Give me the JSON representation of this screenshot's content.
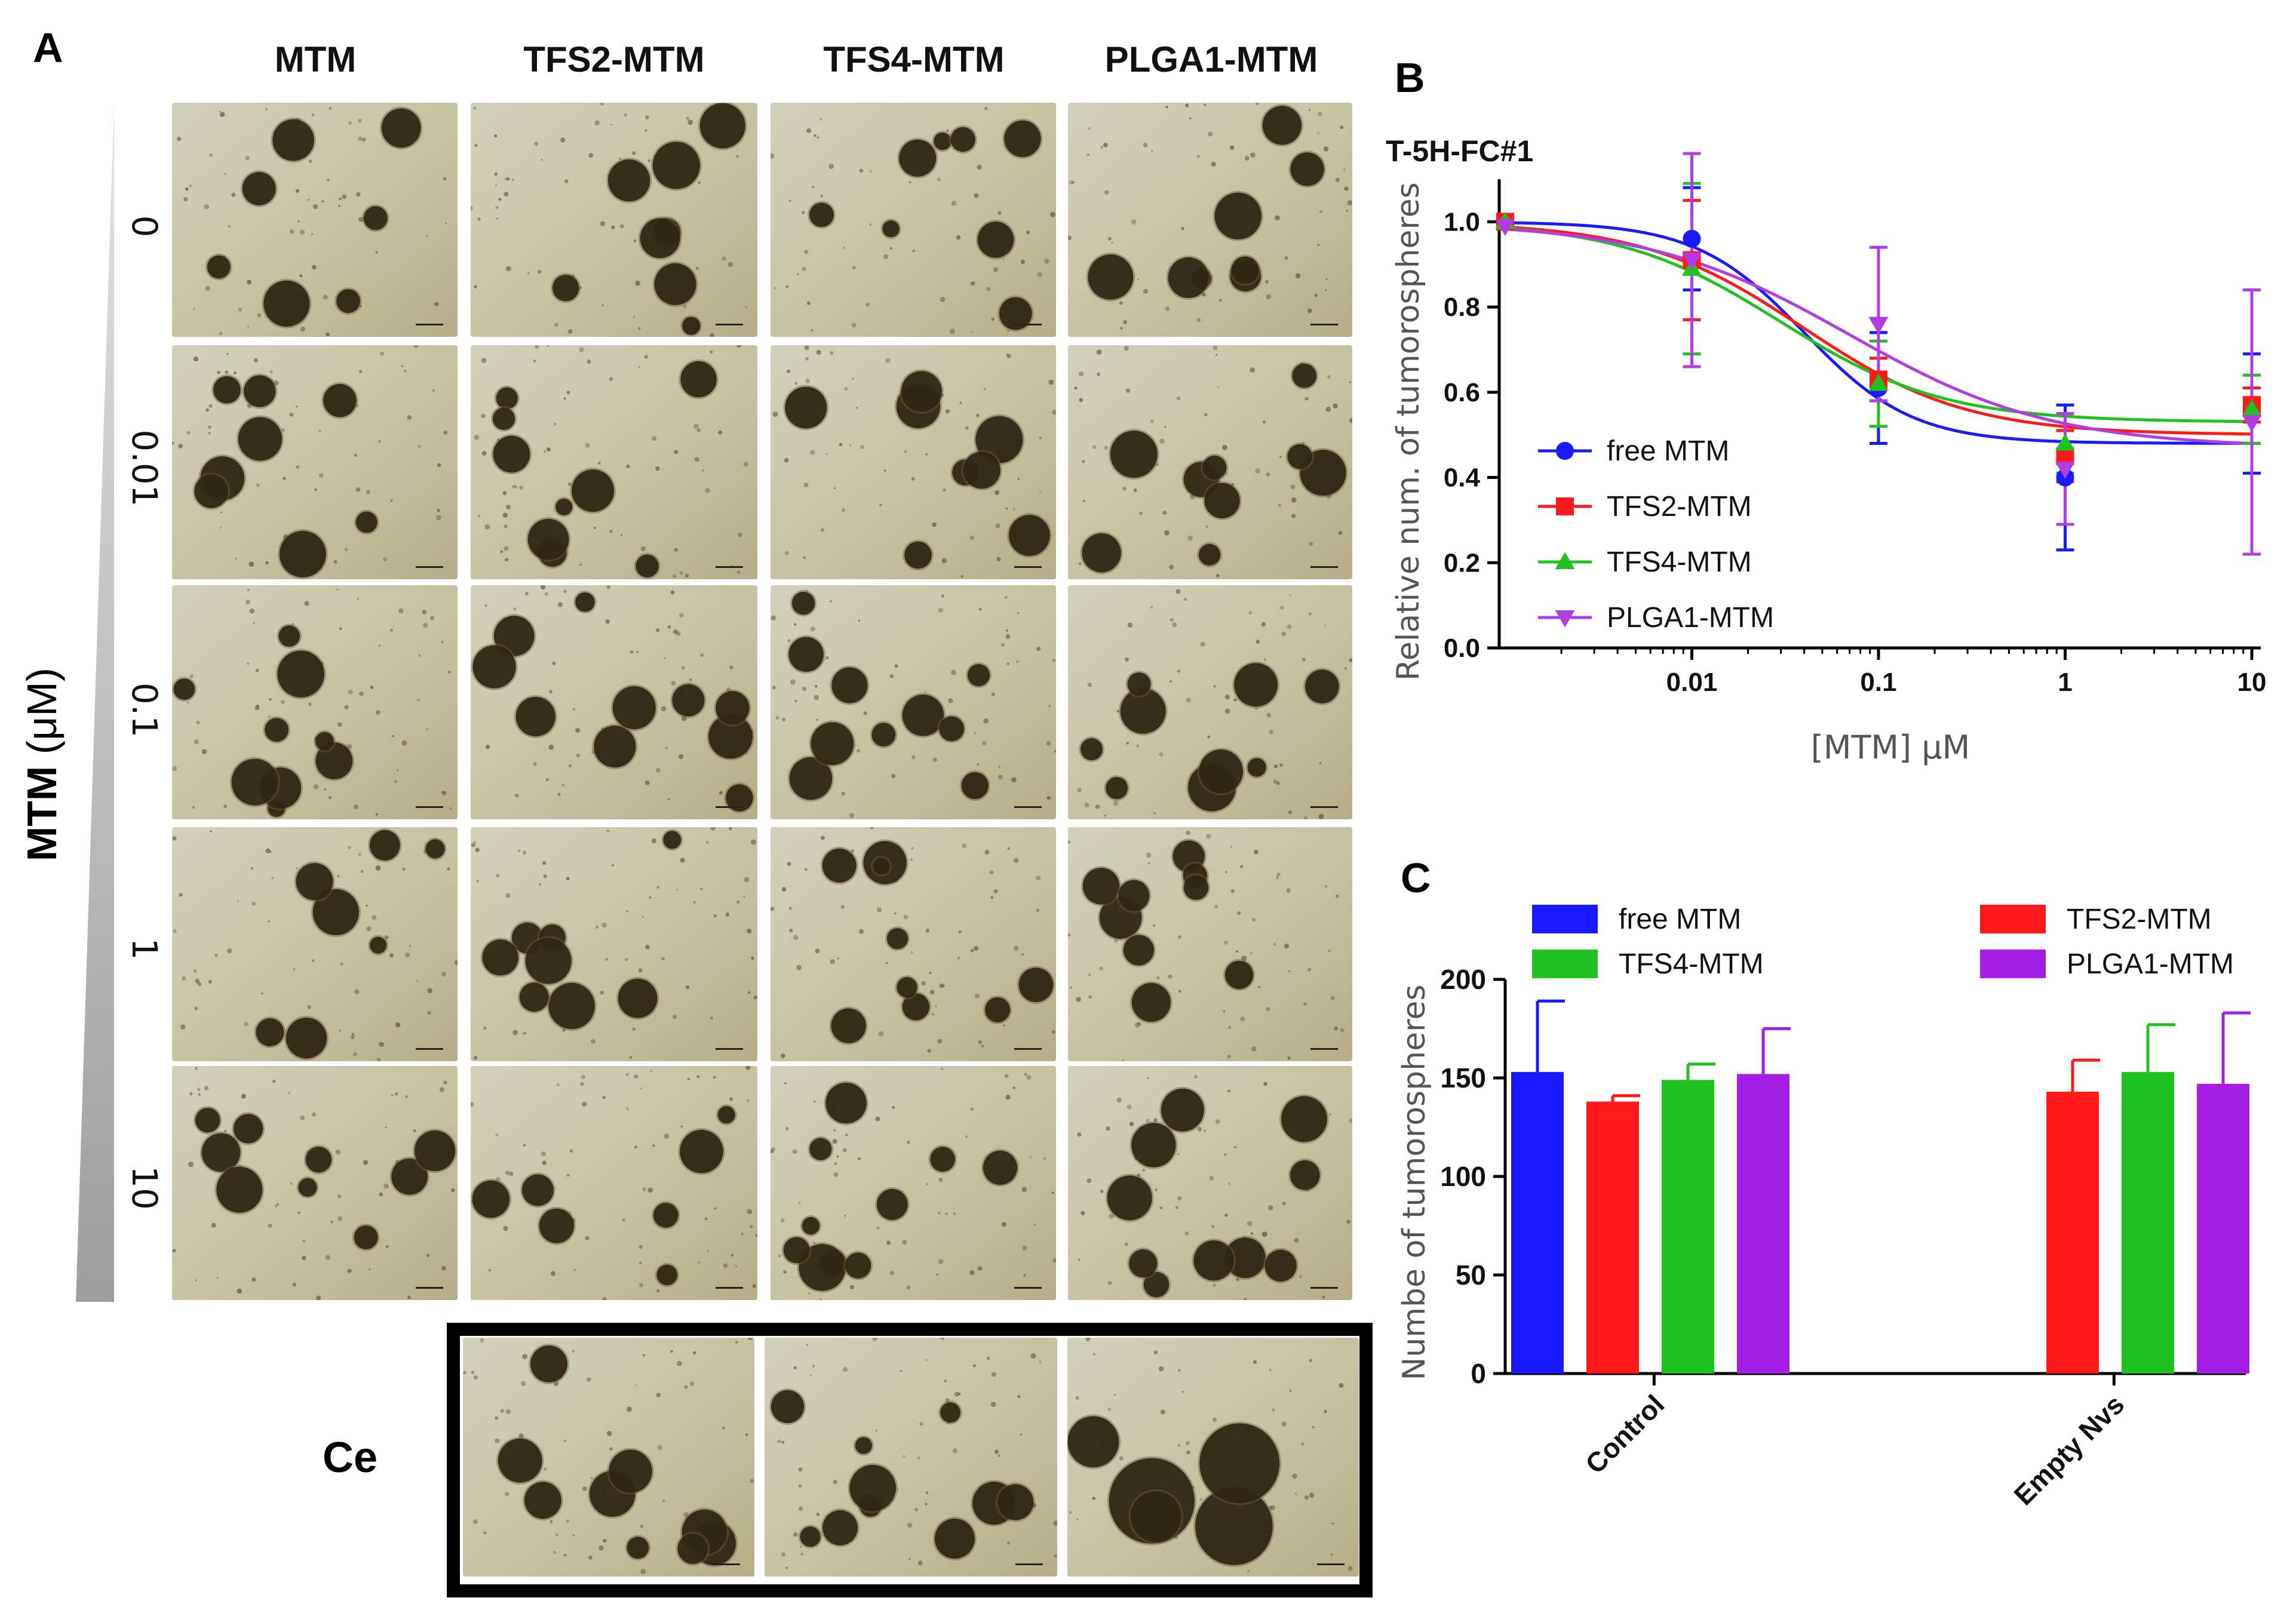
{
  "panel_a": {
    "letter": "A",
    "column_headers": [
      "MTM",
      "TFS2-MTM",
      "TFS4-MTM",
      "PLGA1-MTM"
    ],
    "row_labels": [
      "0",
      "0.01",
      "0.1",
      "1",
      "10"
    ],
    "y_axis_title": "MTM",
    "y_axis_unit": "(μM)",
    "ce_label": "Ce"
  },
  "chart_data": [
    {
      "panel": "B",
      "type": "scatter",
      "title": "T-5H-FC#1",
      "xlabel": "[MTM] μM",
      "ylabel": "Relative num. of tumorospheres",
      "x_scale": "log",
      "x_ticks": [
        "0.01",
        "0.1",
        "1",
        "10"
      ],
      "x_tick_values": [
        0.01,
        0.1,
        1,
        10
      ],
      "ylim": [
        0,
        1.1
      ],
      "y_ticks": [
        "0.0",
        "0.2",
        "0.4",
        "0.6",
        "0.8",
        "1.0"
      ],
      "legend_position": "left",
      "x": [
        0.001,
        0.01,
        0.1,
        1,
        10
      ],
      "series": [
        {
          "name": "free MTM",
          "color": "#1a1aff",
          "marker": "circle",
          "values": [
            1.0,
            0.96,
            0.61,
            0.4,
            0.55
          ],
          "err": [
            0.0,
            0.12,
            0.13,
            0.17,
            0.14
          ],
          "fit": {
            "bottom": 0.48,
            "top": 1.0,
            "ec50": 0.04,
            "hill": 1.5
          }
        },
        {
          "name": "TFS2-MTM",
          "color": "#ff1a1a",
          "marker": "square",
          "values": [
            1.0,
            0.91,
            0.63,
            0.45,
            0.57
          ],
          "err": [
            0.0,
            0.14,
            0.05,
            0.06,
            0.04
          ],
          "fit": {
            "bottom": 0.5,
            "top": 1.0,
            "ec50": 0.04,
            "hill": 1.0
          }
        },
        {
          "name": "TFS4-MTM",
          "color": "#1fc21f",
          "marker": "triangle-up",
          "values": [
            1.0,
            0.89,
            0.62,
            0.48,
            0.56
          ],
          "err": [
            0.0,
            0.2,
            0.1,
            0.07,
            0.08
          ],
          "fit": {
            "bottom": 0.53,
            "top": 1.0,
            "ec50": 0.03,
            "hill": 1.0
          }
        },
        {
          "name": "PLGA1-MTM",
          "color": "#b23ce6",
          "marker": "triangle-down",
          "values": [
            0.99,
            0.91,
            0.76,
            0.42,
            0.53
          ],
          "err": [
            0.0,
            0.25,
            0.18,
            0.13,
            0.31
          ],
          "fit": {
            "bottom": 0.47,
            "top": 1.0,
            "ec50": 0.07,
            "hill": 0.8
          }
        }
      ]
    },
    {
      "panel": "C",
      "type": "bar",
      "title": "",
      "xlabel": "",
      "ylabel": "Numbe of tumorospheres",
      "categories": [
        "Control",
        "Empty Nvs"
      ],
      "ylim": [
        0,
        200
      ],
      "y_ticks": [
        "0",
        "50",
        "100",
        "150",
        "200"
      ],
      "legend_position": "top",
      "series": [
        {
          "name": "free MTM",
          "color": "#1a1aff",
          "values": [
            153,
            null
          ],
          "err": [
            36,
            null
          ]
        },
        {
          "name": "TFS2-MTM",
          "color": "#ff1a1a",
          "values": [
            138,
            143
          ],
          "err": [
            3,
            16
          ]
        },
        {
          "name": "TFS4-MTM",
          "color": "#1fc21f",
          "values": [
            149,
            153
          ],
          "err": [
            8,
            24
          ]
        },
        {
          "name": "PLGA1-MTM",
          "color": "#a51ee6",
          "values": [
            152,
            147
          ],
          "err": [
            23,
            36
          ]
        }
      ]
    }
  ]
}
